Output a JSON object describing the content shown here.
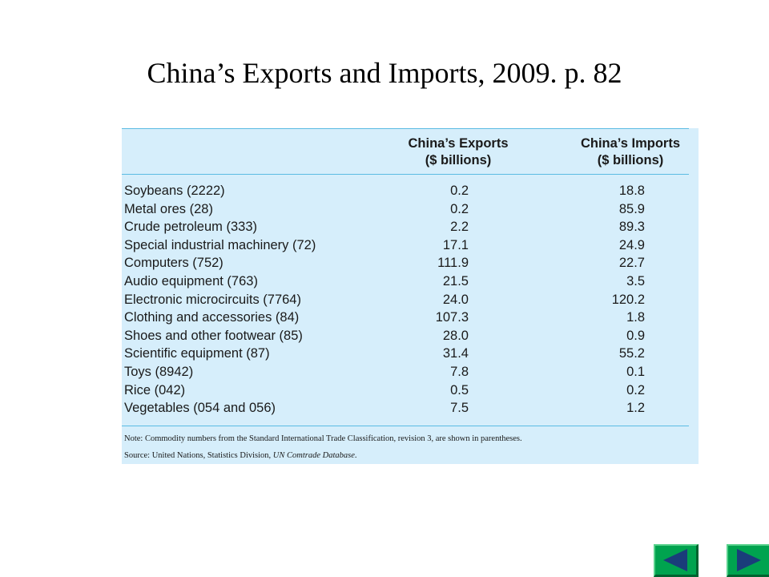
{
  "slide": {
    "title": "China’s Exports and Imports, 2009.  p. 82"
  },
  "table": {
    "col_exports": [
      "China’s Exports",
      "($ billions)"
    ],
    "col_imports": [
      "China’s Imports",
      "($ billions)"
    ],
    "rows": [
      {
        "name": "Soybeans (2222)",
        "exports": "0.2",
        "imports": "18.8"
      },
      {
        "name": "Metal ores (28)",
        "exports": "0.2",
        "imports": "85.9"
      },
      {
        "name": "Crude petroleum (333)",
        "exports": "2.2",
        "imports": "89.3"
      },
      {
        "name": "Special industrial machinery (72)",
        "exports": "17.1",
        "imports": "24.9"
      },
      {
        "name": "Computers (752)",
        "exports": "111.9",
        "imports": "22.7"
      },
      {
        "name": "Audio equipment (763)",
        "exports": "21.5",
        "imports": "3.5"
      },
      {
        "name": "Electronic microcircuits (7764)",
        "exports": "24.0",
        "imports": "120.2"
      },
      {
        "name": "Clothing and accessories (84)",
        "exports": "107.3",
        "imports": "1.8"
      },
      {
        "name": "Shoes and other footwear (85)",
        "exports": "28.0",
        "imports": "0.9"
      },
      {
        "name": "Scientific equipment (87)",
        "exports": "31.4",
        "imports": "55.2"
      },
      {
        "name": "Toys (8942)",
        "exports": "7.8",
        "imports": "0.1"
      },
      {
        "name": "Rice (042)",
        "exports": "0.5",
        "imports": "0.2"
      },
      {
        "name": "Vegetables (054 and 056)",
        "exports": "7.5",
        "imports": "1.2"
      }
    ],
    "note": "Note: Commodity numbers from the Standard International Trade Classification, revision 3, are shown in parentheses.",
    "source_prefix": "Source: United Nations, Statistics Division, ",
    "source_italic": "UN Comtrade Database",
    "source_suffix": "."
  },
  "nav": {
    "prev_icon": "triangle-left-icon",
    "next_icon": "triangle-right-icon",
    "button_color": "#00a34f",
    "arrow_color": "#1a3d7a"
  }
}
